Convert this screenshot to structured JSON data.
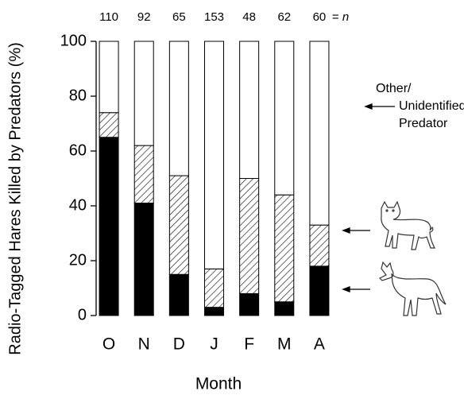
{
  "chart_data": {
    "type": "stacked-bar",
    "y_label": "Radio-Tagged Hares Killed by Predators (%)",
    "x_label": "Month",
    "categories": [
      "O",
      "N",
      "D",
      "J",
      "F",
      "M",
      "A"
    ],
    "n": [
      110,
      92,
      65,
      153,
      48,
      62,
      60
    ],
    "n_label": "= n",
    "series": [
      {
        "color": "#000000",
        "fill": "solid",
        "values": [
          65,
          41,
          15,
          3,
          8,
          5,
          18
        ]
      },
      {
        "color": "#000000",
        "fill": "hatch",
        "values": [
          9,
          21,
          36,
          14,
          42,
          39,
          15
        ]
      },
      {
        "name": "Other/ Unidentified Predator",
        "color": "#ffffff",
        "fill": "solid",
        "values": [
          26,
          38,
          49,
          83,
          50,
          56,
          67
        ]
      }
    ],
    "ylim": [
      0,
      100
    ],
    "yticks": [
      0,
      20,
      40,
      60,
      80,
      100
    ]
  }
}
